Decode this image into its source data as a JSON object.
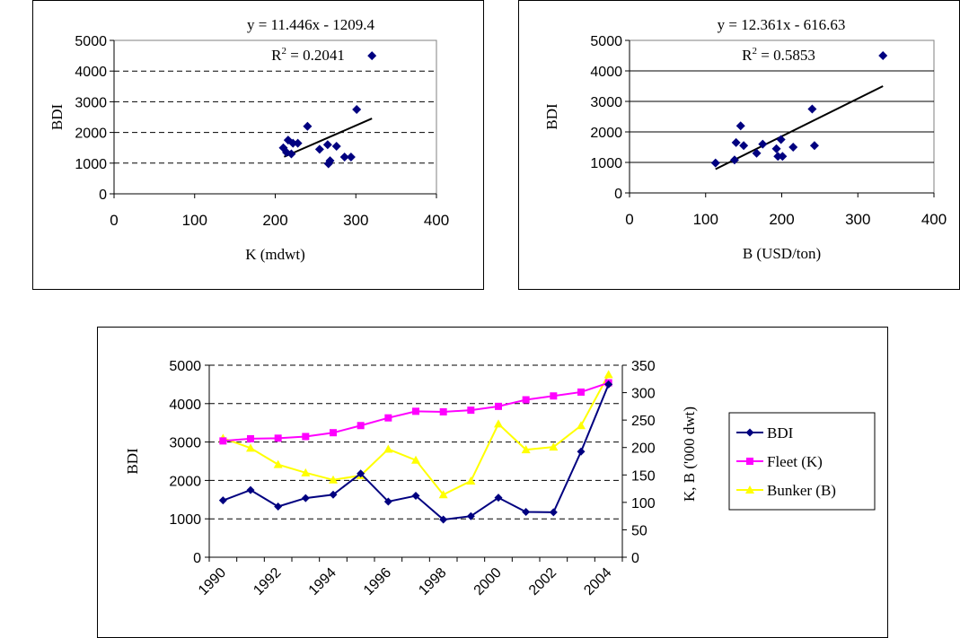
{
  "chart_data": [
    {
      "type": "scatter",
      "xlabel": "K (mdwt)",
      "ylabel": "BDI",
      "xlim": [
        0,
        400
      ],
      "ylim": [
        0,
        5000
      ],
      "x_ticks": [
        "0",
        "100",
        "200",
        "300",
        "400"
      ],
      "y_ticks": [
        "0",
        "1000",
        "2000",
        "3000",
        "4000",
        "5000"
      ],
      "grid": "horizontal dashed",
      "equation": "y = 11.446x - 1209.4",
      "r2_prefix": "R",
      "r2_sup": "2",
      "r2_value": " = 0.2041",
      "trendline": {
        "slope": 11.446,
        "intercept": -1209.4,
        "x_range": [
          211,
          320
        ]
      },
      "points": [
        {
          "x": 210,
          "y": 1500
        },
        {
          "x": 214,
          "y": 1350
        },
        {
          "x": 216,
          "y": 1750
        },
        {
          "x": 220,
          "y": 1300
        },
        {
          "x": 222,
          "y": 1650
        },
        {
          "x": 228,
          "y": 1650
        },
        {
          "x": 240,
          "y": 2200
        },
        {
          "x": 255,
          "y": 1450
        },
        {
          "x": 265,
          "y": 1600
        },
        {
          "x": 266,
          "y": 980
        },
        {
          "x": 268,
          "y": 1080
        },
        {
          "x": 276,
          "y": 1550
        },
        {
          "x": 286,
          "y": 1200
        },
        {
          "x": 294,
          "y": 1200
        },
        {
          "x": 301,
          "y": 2750
        },
        {
          "x": 320,
          "y": 4500
        }
      ],
      "marker_color": "#000080"
    },
    {
      "type": "scatter",
      "xlabel": "B (USD/ton)",
      "ylabel": "BDI",
      "xlim": [
        0,
        400
      ],
      "ylim": [
        0,
        5000
      ],
      "x_ticks": [
        "0",
        "100",
        "200",
        "300",
        "400"
      ],
      "y_ticks": [
        "0",
        "1000",
        "2000",
        "3000",
        "4000",
        "5000"
      ],
      "grid": "horizontal solid",
      "equation": "y = 12.361x - 616.63",
      "r2_prefix": "R",
      "r2_sup": "2",
      "r2_value": " = 0.5853",
      "trendline": {
        "slope": 12.361,
        "intercept": -616.63,
        "x_range": [
          113,
          333
        ]
      },
      "points": [
        {
          "x": 113,
          "y": 980
        },
        {
          "x": 138,
          "y": 1080
        },
        {
          "x": 140,
          "y": 1650
        },
        {
          "x": 146,
          "y": 2200
        },
        {
          "x": 150,
          "y": 1550
        },
        {
          "x": 167,
          "y": 1300
        },
        {
          "x": 175,
          "y": 1600
        },
        {
          "x": 193,
          "y": 1450
        },
        {
          "x": 195,
          "y": 1200
        },
        {
          "x": 199,
          "y": 1750
        },
        {
          "x": 201,
          "y": 1200
        },
        {
          "x": 215,
          "y": 1500
        },
        {
          "x": 240,
          "y": 2750
        },
        {
          "x": 243,
          "y": 1550
        },
        {
          "x": 333,
          "y": 4500
        }
      ],
      "marker_color": "#000080"
    },
    {
      "type": "line",
      "categories": [
        "1990",
        "1991",
        "1992",
        "1993",
        "1994",
        "1995",
        "1996",
        "1997",
        "1998",
        "1999",
        "2000",
        "2001",
        "2002",
        "2003",
        "2004"
      ],
      "x_tick_labels": [
        "1990",
        "1992",
        "1994",
        "1996",
        "1998",
        "2000",
        "2002",
        "2004"
      ],
      "ylabel": "BDI",
      "y2label": "K, B ('000 dwt)",
      "ylim": [
        0,
        5000
      ],
      "y2lim": [
        0,
        350
      ],
      "y_ticks": [
        "0",
        "1000",
        "2000",
        "3000",
        "4000",
        "5000"
      ],
      "y2_ticks": [
        "0",
        "50",
        "100",
        "150",
        "200",
        "250",
        "300",
        "350"
      ],
      "grid": "horizontal dashed",
      "legend_position": "right",
      "series": [
        {
          "name": "BDI",
          "axis": "left",
          "color": "#000080",
          "marker": "diamond",
          "values": [
            1480,
            1750,
            1320,
            1540,
            1630,
            2180,
            1450,
            1600,
            980,
            1070,
            1550,
            1180,
            1170,
            2750,
            4500
          ]
        },
        {
          "name": "Fleet (K)",
          "axis": "right",
          "color": "#FF00FF",
          "marker": "square",
          "values": [
            212,
            216,
            217,
            220,
            227,
            240,
            254,
            266,
            265,
            268,
            275,
            287,
            294,
            301,
            318
          ]
        },
        {
          "name": "Bunker (B)",
          "axis": "right",
          "color": "#FFFF00",
          "marker": "triangle",
          "values": [
            217,
            199,
            169,
            154,
            141,
            149,
            197,
            177,
            114,
            139,
            243,
            196,
            201,
            240,
            333
          ]
        }
      ]
    }
  ]
}
